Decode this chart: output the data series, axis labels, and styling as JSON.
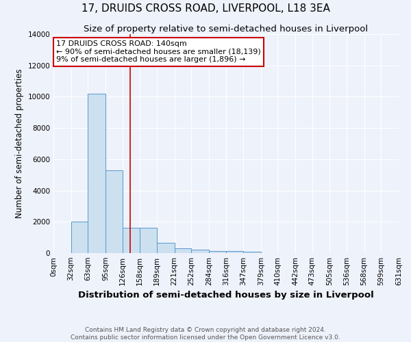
{
  "title": "17, DRUIDS CROSS ROAD, LIVERPOOL, L18 3EA",
  "subtitle": "Size of property relative to semi-detached houses in Liverpool",
  "xlabel": "Distribution of semi-detached houses by size in Liverpool",
  "ylabel": "Number of semi-detached properties",
  "bin_labels": [
    "0sqm",
    "32sqm",
    "63sqm",
    "95sqm",
    "126sqm",
    "158sqm",
    "189sqm",
    "221sqm",
    "252sqm",
    "284sqm",
    "316sqm",
    "347sqm",
    "379sqm",
    "410sqm",
    "442sqm",
    "473sqm",
    "505sqm",
    "536sqm",
    "568sqm",
    "599sqm",
    "631sqm"
  ],
  "bin_edges": [
    0,
    32,
    63,
    95,
    126,
    158,
    189,
    221,
    252,
    284,
    316,
    347,
    379,
    410,
    442,
    473,
    505,
    536,
    568,
    599,
    631
  ],
  "bar_heights": [
    0,
    2000,
    10200,
    5300,
    1600,
    1600,
    650,
    300,
    200,
    150,
    130,
    100,
    0,
    0,
    0,
    0,
    0,
    0,
    0,
    0
  ],
  "bar_color": "#cce0f0",
  "bar_edge_color": "#5599cc",
  "property_line_x": 140,
  "property_line_color": "#cc0000",
  "annotation_title": "17 DRUIDS CROSS ROAD: 140sqm",
  "annotation_line1": "← 90% of semi-detached houses are smaller (18,139)",
  "annotation_line2": "9% of semi-detached houses are larger (1,896) →",
  "annotation_box_color": "#ffffff",
  "annotation_box_edge_color": "#cc0000",
  "ylim": [
    0,
    14000
  ],
  "yticks": [
    0,
    2000,
    4000,
    6000,
    8000,
    10000,
    12000,
    14000
  ],
  "footnote1": "Contains HM Land Registry data © Crown copyright and database right 2024.",
  "footnote2": "Contains public sector information licensed under the Open Government Licence v3.0.",
  "background_color": "#eef2fb",
  "grid_color": "#ffffff",
  "title_fontsize": 11,
  "subtitle_fontsize": 9.5,
  "xlabel_fontsize": 9.5,
  "ylabel_fontsize": 8.5,
  "tick_fontsize": 7.5,
  "footnote_fontsize": 6.5,
  "annotation_fontsize": 8
}
